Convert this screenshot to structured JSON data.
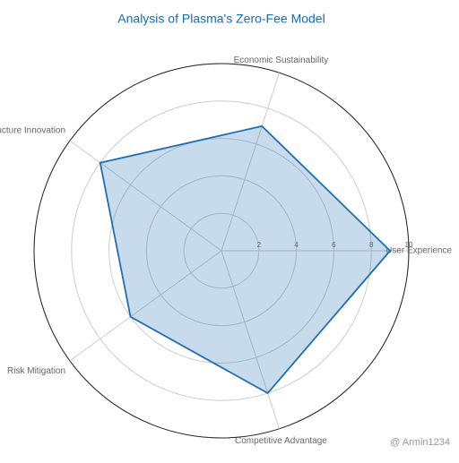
{
  "chart_data": {
    "type": "radar",
    "title": "Analysis of Plasma's Zero-Fee Model",
    "categories": [
      "User Experience",
      "Economic Sustainability",
      "Infrastructure Innovation",
      "Risk Mitigation",
      "Competitive Advantage"
    ],
    "values": [
      9,
      7,
      8,
      6,
      8
    ],
    "color": "#1f6fb2",
    "rlim": [
      0,
      10
    ],
    "rticks": [
      2,
      4,
      6,
      8,
      10
    ],
    "grid": true,
    "watermark": "@ Armin1234"
  }
}
